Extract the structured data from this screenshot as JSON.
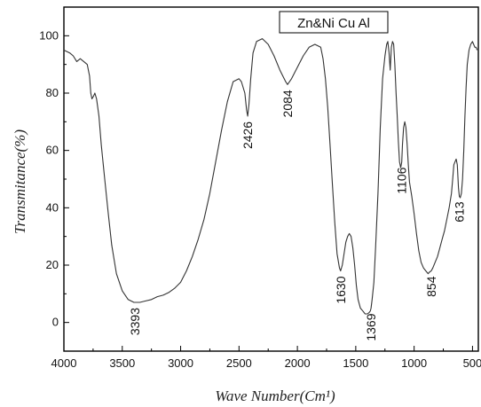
{
  "chart_data": {
    "type": "line",
    "title": "",
    "xlabel": "Wave Number(Cm¹)",
    "ylabel": "Transmitance(%)",
    "xlim": [
      4000,
      450
    ],
    "ylim": [
      -10,
      110
    ],
    "x_ticks": [
      "4000",
      "3500",
      "3000",
      "2500",
      "2000",
      "1500",
      "1000",
      "500"
    ],
    "y_ticks": [
      "0",
      "20",
      "40",
      "60",
      "80",
      "100"
    ],
    "legend": {
      "entries": [
        "Zn&Ni Cu Al"
      ],
      "placement": "top-center"
    },
    "grid": false,
    "series": [
      {
        "name": "Zn&Ni Cu Al",
        "x": [
          4000,
          3950,
          3920,
          3890,
          3860,
          3830,
          3800,
          3780,
          3770,
          3760,
          3745,
          3735,
          3720,
          3700,
          3680,
          3650,
          3620,
          3590,
          3550,
          3500,
          3450,
          3400,
          3393,
          3350,
          3300,
          3250,
          3200,
          3150,
          3100,
          3050,
          3000,
          2950,
          2900,
          2850,
          2800,
          2750,
          2700,
          2650,
          2600,
          2550,
          2500,
          2480,
          2450,
          2435,
          2426,
          2415,
          2400,
          2380,
          2350,
          2300,
          2250,
          2200,
          2150,
          2100,
          2084,
          2050,
          2000,
          1950,
          1900,
          1850,
          1800,
          1780,
          1760,
          1740,
          1720,
          1700,
          1680,
          1660,
          1640,
          1630,
          1615,
          1600,
          1585,
          1570,
          1555,
          1540,
          1525,
          1510,
          1495,
          1480,
          1460,
          1440,
          1420,
          1400,
          1385,
          1375,
          1369,
          1360,
          1345,
          1330,
          1310,
          1290,
          1270,
          1250,
          1235,
          1225,
          1215,
          1205,
          1195,
          1185,
          1175,
          1165,
          1155,
          1145,
          1135,
          1125,
          1115,
          1106,
          1100,
          1090,
          1080,
          1070,
          1060,
          1050,
          1040,
          1020,
          1000,
          980,
          960,
          940,
          920,
          900,
          880,
          870,
          854,
          840,
          820,
          800,
          780,
          760,
          740,
          720,
          700,
          680,
          670,
          660,
          650,
          640,
          630,
          620,
          613,
          605,
          595,
          585,
          575,
          565,
          555,
          545,
          530,
          515,
          500,
          490,
          480,
          470,
          460
        ],
        "y": [
          95,
          94,
          93,
          91,
          92,
          91,
          90,
          86,
          80,
          78,
          79,
          80,
          78,
          72,
          62,
          50,
          38,
          27,
          17,
          11,
          8,
          7,
          7,
          7,
          7.5,
          8,
          9,
          9.5,
          10.5,
          12,
          14,
          18,
          23,
          29,
          36,
          45,
          56,
          67,
          77,
          84,
          85,
          84,
          80,
          74,
          72,
          76,
          85,
          94,
          98,
          99,
          97,
          93,
          88,
          84,
          83,
          85,
          89,
          93,
          96,
          97,
          96,
          92,
          85,
          75,
          62,
          48,
          35,
          24,
          19,
          18,
          20,
          24,
          28,
          30,
          31,
          30,
          26,
          20,
          13,
          8,
          5,
          4,
          3,
          3,
          3.5,
          4,
          5,
          8,
          14,
          26,
          45,
          68,
          85,
          93,
          97,
          98,
          94,
          88,
          96,
          98,
          97,
          90,
          80,
          72,
          63,
          56,
          54,
          56,
          62,
          68,
          70,
          68,
          62,
          55,
          49,
          44,
          38,
          31,
          25,
          21,
          19,
          18,
          17,
          17.5,
          18,
          19,
          21,
          23,
          26,
          29,
          32,
          36,
          40,
          45,
          50,
          55,
          56,
          57,
          55,
          47,
          44,
          43.5,
          45,
          50,
          60,
          72,
          82,
          90,
          95,
          97,
          98,
          97,
          96,
          96,
          95
        ]
      }
    ],
    "annotations": [
      "3393",
      "2426",
      "2084",
      "1630",
      "1369",
      "1106",
      "854",
      "613"
    ]
  }
}
